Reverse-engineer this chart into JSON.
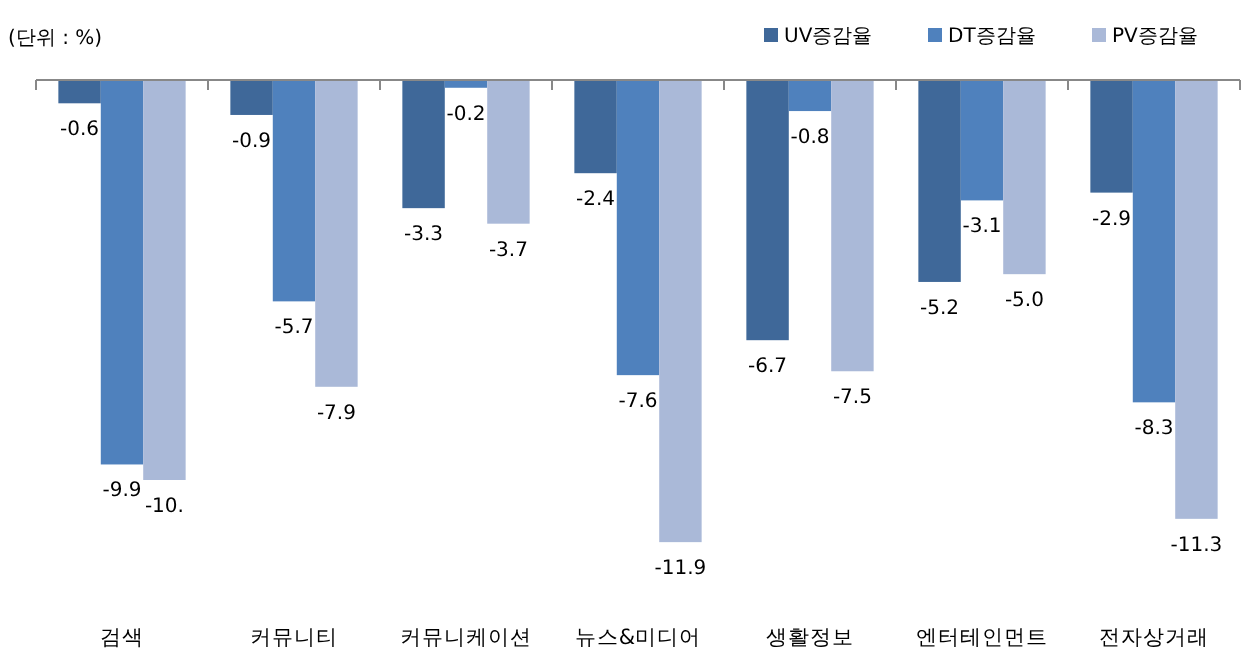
{
  "chart_data": {
    "type": "bar",
    "annotations": [
      "(단위 : %)"
    ],
    "legend": "top right",
    "categories": [
      "검색",
      "커뮤니티",
      "커뮤니케이션",
      "뉴스&미디어",
      "생활정보",
      "엔터테인먼트",
      "전자상거래"
    ],
    "series": [
      {
        "name": "UV증감율",
        "color": "#3f6899",
        "values": [
          -0.6,
          -0.9,
          -3.3,
          -2.4,
          -6.7,
          -5.2,
          -2.9
        ],
        "value_labels": [
          "-0.6",
          "-0.9",
          "-3.3",
          "-2.4",
          "-6.7",
          "-5.2",
          "-2.9"
        ]
      },
      {
        "name": "DT증감율",
        "color": "#4f81bd",
        "values": [
          -9.9,
          -5.7,
          -0.2,
          -7.6,
          -0.8,
          -3.1,
          -8.3
        ],
        "value_labels": [
          "-9.9",
          "-5.7",
          "-0.2",
          "-7.6",
          "-0.8",
          "-3.1",
          "-8.3"
        ]
      },
      {
        "name": "PV증감율",
        "color": "#aab9d8",
        "values": [
          -10.3,
          -7.9,
          -3.7,
          -11.9,
          -7.5,
          -5.0,
          -11.3
        ],
        "value_labels": [
          "-10.",
          "-7.9",
          "-3.7",
          "-11.9",
          "-7.5",
          "-5.0",
          "-11.3"
        ]
      }
    ]
  }
}
